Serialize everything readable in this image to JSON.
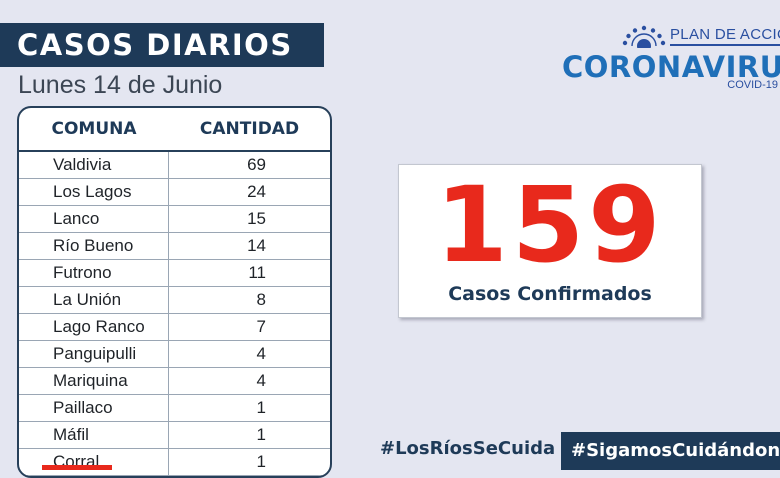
{
  "header": {
    "title": "CASOS DIARIOS",
    "date": "Lunes 14 de Junio"
  },
  "logo": {
    "plan": "PLAN DE ACCIÓN",
    "name": "CORONAVIRUS",
    "covid": "COVID-19"
  },
  "table": {
    "columns": [
      "COMUNA",
      "CANTIDAD"
    ],
    "rows": [
      {
        "comuna": "Valdivia",
        "cantidad": "69"
      },
      {
        "comuna": "Los Lagos",
        "cantidad": "24"
      },
      {
        "comuna": "Lanco",
        "cantidad": "15"
      },
      {
        "comuna": "Río Bueno",
        "cantidad": "14"
      },
      {
        "comuna": "Futrono",
        "cantidad": "11"
      },
      {
        "comuna": "La Unión",
        "cantidad": "8"
      },
      {
        "comuna": "Lago Ranco",
        "cantidad": "7"
      },
      {
        "comuna": "Panguipulli",
        "cantidad": "4"
      },
      {
        "comuna": "Mariquina",
        "cantidad": "4"
      },
      {
        "comuna": "Paillaco",
        "cantidad": "1"
      },
      {
        "comuna": "Máfil",
        "cantidad": "1"
      },
      {
        "comuna": "Corral",
        "cantidad": "1"
      }
    ]
  },
  "summary": {
    "total": "159",
    "label": "Casos Confirmados"
  },
  "hashtags": {
    "primary": "#LosRíosSeCuida",
    "secondary": "#SigamosCuidándonos"
  },
  "colors": {
    "navy": "#1e3a58",
    "red": "#e8291c",
    "blue": "#1f6fb8",
    "background": "#e4e6f1"
  }
}
